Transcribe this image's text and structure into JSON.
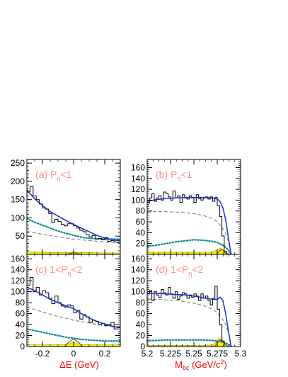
{
  "colors": {
    "data": "#000000",
    "fit": "#1c2fcf",
    "bkg_dashed": "#8a8a8a",
    "dotted": "#0c8c8c",
    "fill": "#f7f200",
    "signal": "#8c3a22",
    "label": "#ff8c8c",
    "axis_title": "#ff0000"
  },
  "x_titles": {
    "left": {
      "pre": "ΔE (GeV)"
    },
    "right": {
      "pre": "M",
      "sub": "bc",
      "mid": " (GeV/c",
      "sup": "2",
      "post": ")"
    }
  },
  "chart_data": [
    {
      "type": "line",
      "label": {
        "pre": "(a) P",
        "sub": "η",
        "post": "<1"
      },
      "xlim": [
        -0.3,
        0.3
      ],
      "ylim": [
        0,
        260
      ],
      "xticks": [
        {
          "v": -0.2,
          "label": ""
        },
        {
          "v": 0,
          "label": ""
        },
        {
          "v": 0.2,
          "label": ""
        }
      ],
      "yticks": [
        {
          "v": 50,
          "label": "50"
        },
        {
          "v": 100,
          "label": "100"
        },
        {
          "v": 150,
          "label": "150"
        },
        {
          "v": 200,
          "label": "200"
        },
        {
          "v": 250,
          "label": "250"
        }
      ],
      "histogram": {
        "x0": -0.3,
        "dx": 0.02,
        "values": [
          172,
          186,
          160,
          150,
          138,
          127,
          124,
          112,
          88,
          96,
          90,
          82,
          78,
          84,
          84,
          78,
          72,
          66,
          62,
          54,
          48,
          52,
          42,
          44,
          40,
          46,
          36,
          38,
          34,
          33
        ]
      },
      "curves": {
        "fit": {
          "x": [
            -0.3,
            -0.25,
            -0.2,
            -0.15,
            -0.1,
            -0.05,
            0,
            0.05,
            0.1,
            0.15,
            0.2,
            0.25,
            0.3
          ],
          "y": [
            177,
            152,
            134,
            117,
            105,
            93,
            82,
            72,
            62,
            52,
            45,
            40,
            37
          ]
        },
        "bkg": {
          "x": [
            -0.3,
            -0.2,
            -0.1,
            0,
            0.1,
            0.2,
            0.3
          ],
          "y": [
            63,
            55,
            48,
            42,
            38,
            34,
            32
          ]
        },
        "dotted": {
          "x": [
            -0.3,
            -0.25,
            -0.2,
            -0.15,
            -0.1,
            -0.05,
            0,
            0.05,
            0.1,
            0.2,
            0.3
          ],
          "y": [
            98,
            88,
            80,
            72,
            64,
            58,
            52,
            47,
            44,
            42,
            42
          ]
        },
        "fill": {
          "x": [
            -0.3,
            -0.2,
            -0.1,
            -0.05,
            0,
            0.05,
            0.1,
            0.2,
            0.3
          ],
          "y": [
            8,
            6,
            5,
            5,
            6,
            5,
            5,
            4,
            4
          ]
        },
        "signal": {
          "x": [
            -0.05,
            -0.02,
            0,
            0.02,
            0.05
          ],
          "y": [
            0,
            3,
            5,
            3,
            0
          ]
        }
      }
    },
    {
      "type": "line",
      "label": {
        "pre": "(b) P",
        "sub": "η",
        "post": "<1"
      },
      "xlim": [
        5.2,
        5.3
      ],
      "ylim": [
        0,
        175
      ],
      "xticks": [
        {
          "v": 5.2,
          "label": ""
        },
        {
          "v": 5.225,
          "label": ""
        },
        {
          "v": 5.25,
          "label": ""
        },
        {
          "v": 5.275,
          "label": ""
        },
        {
          "v": 5.3,
          "label": ""
        }
      ],
      "yticks": [
        {
          "v": 20,
          "label": "20"
        },
        {
          "v": 40,
          "label": "40"
        },
        {
          "v": 60,
          "label": "60"
        },
        {
          "v": 80,
          "label": "80"
        },
        {
          "v": 100,
          "label": "100"
        },
        {
          "v": 120,
          "label": "120"
        },
        {
          "v": 140,
          "label": "140"
        },
        {
          "v": 160,
          "label": "160"
        }
      ],
      "histogram": {
        "x0": 5.2,
        "dx": 0.0025,
        "values": [
          95,
          104,
          112,
          98,
          104,
          108,
          100,
          115,
          112,
          106,
          100,
          117,
          104,
          108,
          96,
          110,
          104,
          102,
          108,
          104,
          96,
          110,
          103,
          100,
          104,
          106,
          102,
          106,
          98,
          105,
          90,
          70,
          34,
          6,
          0,
          0,
          0,
          0,
          0,
          0
        ]
      },
      "curves": {
        "fit": {
          "x": [
            5.2,
            5.21,
            5.22,
            5.23,
            5.24,
            5.25,
            5.26,
            5.27,
            5.275,
            5.278,
            5.281,
            5.284,
            5.287,
            5.289,
            5.29
          ],
          "y": [
            98,
            101,
            103,
            104,
            105,
            105,
            105,
            104,
            102,
            97,
            86,
            64,
            30,
            8,
            0
          ]
        },
        "bkg": {
          "x": [
            5.2,
            5.21,
            5.22,
            5.23,
            5.24,
            5.25,
            5.26,
            5.27,
            5.275,
            5.28,
            5.284,
            5.287,
            5.289,
            5.29
          ],
          "y": [
            78,
            79,
            79,
            78,
            77,
            75,
            72,
            66,
            60,
            50,
            38,
            24,
            9,
            0
          ]
        },
        "dotted": {
          "x": [
            5.2,
            5.21,
            5.22,
            5.23,
            5.24,
            5.25,
            5.26,
            5.27,
            5.275,
            5.28,
            5.284,
            5.287,
            5.289,
            5.29
          ],
          "y": [
            15,
            17,
            20,
            23,
            25,
            27,
            26,
            24,
            22,
            18,
            13,
            8,
            3,
            0
          ]
        },
        "fill": {
          "x": [
            5.2,
            5.22,
            5.24,
            5.26,
            5.27,
            5.275,
            5.278,
            5.281,
            5.284,
            5.287,
            5.29
          ],
          "y": [
            4,
            4,
            4,
            4,
            5,
            8,
            12,
            9,
            4,
            1,
            0
          ]
        },
        "signal": {
          "x": [
            5.274,
            5.277,
            5.279,
            5.281,
            5.283,
            5.286
          ],
          "y": [
            0,
            5,
            9,
            8,
            3,
            0
          ]
        }
      }
    },
    {
      "type": "line",
      "label": {
        "pre": "(c) 1<P",
        "sub": "η",
        "post": "<2"
      },
      "xlim": [
        -0.3,
        0.3
      ],
      "ylim": [
        0,
        168
      ],
      "xticks": [
        {
          "v": -0.2,
          "label": "-0.2"
        },
        {
          "v": 0,
          "label": "0"
        },
        {
          "v": 0.2,
          "label": "0.2"
        }
      ],
      "yticks": [
        {
          "v": 0,
          "label": "0"
        },
        {
          "v": 20,
          "label": "20"
        },
        {
          "v": 40,
          "label": "40"
        },
        {
          "v": 60,
          "label": "60"
        },
        {
          "v": 80,
          "label": "80"
        },
        {
          "v": 100,
          "label": "100"
        },
        {
          "v": 120,
          "label": "120"
        },
        {
          "v": 140,
          "label": "140"
        },
        {
          "v": 160,
          "label": "160"
        }
      ],
      "histogram": {
        "x0": -0.3,
        "dx": 0.02,
        "values": [
          112,
          126,
          100,
          108,
          94,
          102,
          98,
          88,
          78,
          92,
          80,
          74,
          72,
          76,
          74,
          62,
          66,
          50,
          58,
          54,
          44,
          48,
          46,
          40,
          42,
          38,
          40,
          44,
          32,
          36
        ]
      },
      "curves": {
        "fit": {
          "x": [
            -0.3,
            -0.25,
            -0.2,
            -0.15,
            -0.1,
            -0.05,
            0,
            0.05,
            0.1,
            0.15,
            0.2,
            0.25,
            0.3
          ],
          "y": [
            108,
            102,
            94,
            86,
            80,
            74,
            69,
            60,
            52,
            46,
            41,
            37,
            34
          ]
        },
        "bkg": {
          "x": [
            -0.3,
            -0.2,
            -0.1,
            0,
            0.1,
            0.2,
            0.3
          ],
          "y": [
            72,
            63,
            55,
            48,
            43,
            38,
            34
          ]
        },
        "dotted": {
          "x": [
            -0.3,
            -0.25,
            -0.2,
            -0.15,
            -0.1,
            -0.05,
            0,
            0.05,
            0.1,
            0.2,
            0.3
          ],
          "y": [
            32,
            29,
            26,
            23,
            20,
            17,
            15,
            13,
            12,
            10,
            10
          ]
        },
        "fill": {
          "x": [
            -0.3,
            -0.2,
            -0.1,
            -0.05,
            -0.02,
            0,
            0.02,
            0.05,
            0.1,
            0.2,
            0.3
          ],
          "y": [
            3,
            3,
            3,
            4,
            6,
            8,
            6,
            4,
            3,
            3,
            3
          ]
        },
        "signal": {
          "x": [
            -0.06,
            -0.03,
            0,
            0.03,
            0.06
          ],
          "y": [
            0,
            8,
            14,
            8,
            0
          ]
        }
      }
    },
    {
      "type": "line",
      "label": {
        "pre": "(d) 1<P",
        "sub": "η",
        "post": "<2"
      },
      "xlim": [
        5.2,
        5.3
      ],
      "ylim": [
        0,
        168
      ],
      "xticks": [
        {
          "v": 5.2,
          "label": "5.2"
        },
        {
          "v": 5.225,
          "label": "5.225"
        },
        {
          "v": 5.25,
          "label": "5.25"
        },
        {
          "v": 5.275,
          "label": "5.275"
        },
        {
          "v": 5.3,
          "label": "5.3"
        }
      ],
      "yticks": [
        {
          "v": 0,
          "label": "0"
        },
        {
          "v": 20,
          "label": "20"
        },
        {
          "v": 40,
          "label": "40"
        },
        {
          "v": 60,
          "label": "60"
        },
        {
          "v": 80,
          "label": "80"
        },
        {
          "v": 100,
          "label": "100"
        },
        {
          "v": 120,
          "label": "120"
        },
        {
          "v": 140,
          "label": "140"
        },
        {
          "v": 160,
          "label": "160"
        }
      ],
      "histogram": {
        "x0": 5.2,
        "dx": 0.0025,
        "values": [
          96,
          102,
          84,
          100,
          94,
          90,
          104,
          98,
          94,
          108,
          96,
          88,
          100,
          86,
          92,
          98,
          96,
          88,
          94,
          90,
          96,
          92,
          84,
          96,
          88,
          92,
          84,
          76,
          88,
          110,
          68,
          40,
          10,
          0,
          0,
          0,
          0,
          0,
          0,
          0
        ]
      },
      "curves": {
        "fit": {
          "x": [
            5.2,
            5.21,
            5.22,
            5.23,
            5.24,
            5.25,
            5.26,
            5.27,
            5.275,
            5.278,
            5.281,
            5.284,
            5.287,
            5.289,
            5.29
          ],
          "y": [
            97,
            97,
            96,
            95,
            94,
            92,
            89,
            86,
            86,
            90,
            84,
            60,
            28,
            8,
            0
          ]
        },
        "bkg": {
          "x": [
            5.2,
            5.21,
            5.22,
            5.23,
            5.24,
            5.25,
            5.26,
            5.27,
            5.275,
            5.28,
            5.284,
            5.287,
            5.289,
            5.29
          ],
          "y": [
            86,
            86,
            85,
            84,
            82,
            79,
            75,
            68,
            62,
            52,
            40,
            25,
            10,
            0
          ]
        },
        "dotted": {
          "x": [
            5.2,
            5.21,
            5.22,
            5.23,
            5.24,
            5.25,
            5.26,
            5.27,
            5.275,
            5.28,
            5.284,
            5.287,
            5.289,
            5.29
          ],
          "y": [
            11,
            11,
            12,
            12,
            12,
            12,
            12,
            11,
            10,
            8,
            6,
            4,
            2,
            0
          ]
        },
        "fill": {
          "x": [
            5.2,
            5.22,
            5.24,
            5.26,
            5.27,
            5.274,
            5.277,
            5.28,
            5.283,
            5.286,
            5.29
          ],
          "y": [
            2,
            2,
            2,
            2,
            3,
            8,
            15,
            13,
            5,
            1,
            0
          ]
        },
        "signal": {
          "x": [
            5.272,
            5.275,
            5.278,
            5.281,
            5.284,
            5.287
          ],
          "y": [
            0,
            6,
            12,
            10,
            4,
            0
          ]
        }
      }
    }
  ]
}
